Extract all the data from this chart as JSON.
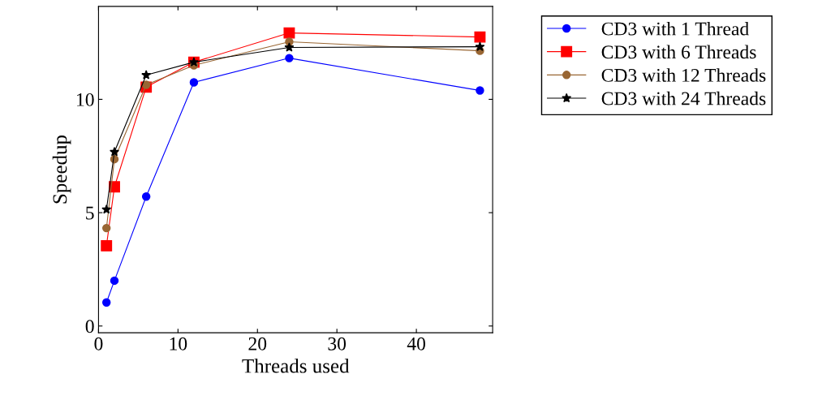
{
  "chart_data": {
    "type": "line",
    "xlabel": "Threads used",
    "ylabel": "Speedup",
    "x": [
      1,
      2,
      6,
      12,
      24,
      48
    ],
    "series": [
      {
        "name": "CD3 with 1 Thread",
        "color": "#0000ff",
        "marker": "circle",
        "values": [
          1.04,
          2.0,
          5.71,
          10.75,
          11.82,
          10.39
        ]
      },
      {
        "name": "CD3 with 6 Threads",
        "color": "#ff0000",
        "marker": "square",
        "values": [
          3.54,
          6.14,
          10.54,
          11.64,
          12.93,
          12.75
        ]
      },
      {
        "name": "CD3 with 12 Threads",
        "color": "#996633",
        "marker": "circle",
        "values": [
          4.32,
          7.36,
          10.64,
          11.5,
          12.54,
          12.14
        ]
      },
      {
        "name": "CD3 with 24 Threads",
        "color": "#000000",
        "marker": "star",
        "values": [
          5.14,
          7.68,
          11.07,
          11.64,
          12.29,
          12.32
        ]
      }
    ],
    "xlim": [
      0,
      49.6
    ],
    "ylim": [
      -0.3,
      14.1
    ],
    "xticks": [
      0,
      10,
      20,
      30,
      40
    ],
    "yticks": [
      0,
      5,
      10
    ],
    "legend": "right",
    "line_style": "solid"
  }
}
